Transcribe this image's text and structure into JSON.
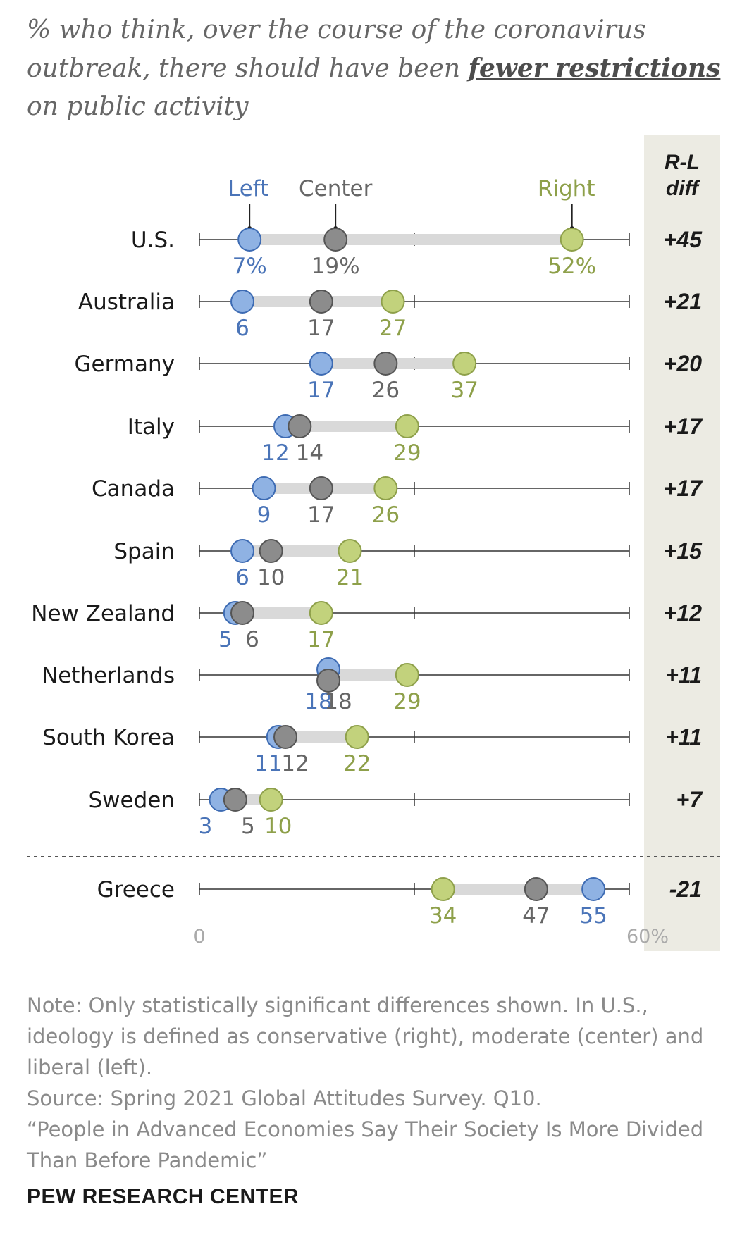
{
  "title": {
    "before": "% who think, over the course of the coronavirus outbreak, there should have been ",
    "emphasis": "fewer restrictions",
    "after": " on public activity"
  },
  "colors": {
    "left": "#8fb2e3",
    "left_stroke": "#3d6bb3",
    "left_text": "#4a74b8",
    "center": "#8c8c8c",
    "center_stroke": "#555555",
    "center_text": "#666666",
    "right": "#c2d27c",
    "right_stroke": "#8ea04a",
    "right_text": "#8ea04a",
    "range_bar": "#d9d9d9",
    "diff_panel": "#ecebe3"
  },
  "chart_data": {
    "type": "dot",
    "xlim": [
      0,
      60
    ],
    "x_tick_labels": [
      "0",
      "60%"
    ],
    "legend": [
      "Left",
      "Center",
      "Right"
    ],
    "diff_header": [
      "R-L",
      "diff"
    ],
    "rows": [
      {
        "country": "U.S.",
        "left": 7,
        "center": 19,
        "right": 52,
        "labels": [
          "7%",
          "19%",
          "52%"
        ],
        "diff": "+45"
      },
      {
        "country": "Australia",
        "left": 6,
        "center": 17,
        "right": 27,
        "labels": [
          "6",
          "17",
          "27"
        ],
        "diff": "+21"
      },
      {
        "country": "Germany",
        "left": 17,
        "center": 26,
        "right": 37,
        "labels": [
          "17",
          "26",
          "37"
        ],
        "diff": "+20"
      },
      {
        "country": "Italy",
        "left": 12,
        "center": 14,
        "right": 29,
        "labels": [
          "12",
          "14",
          "29"
        ],
        "diff": "+17"
      },
      {
        "country": "Canada",
        "left": 9,
        "center": 17,
        "right": 26,
        "labels": [
          "9",
          "17",
          "26"
        ],
        "diff": "+17"
      },
      {
        "country": "Spain",
        "left": 6,
        "center": 10,
        "right": 21,
        "labels": [
          "6",
          "10",
          "21"
        ],
        "diff": "+15"
      },
      {
        "country": "New Zealand",
        "left": 5,
        "center": 6,
        "right": 17,
        "labels": [
          "5",
          "6",
          "17"
        ],
        "diff": "+12"
      },
      {
        "country": "Netherlands",
        "left": 18,
        "center": 18,
        "right": 29,
        "labels": [
          "18",
          "18",
          "29"
        ],
        "diff": "+11"
      },
      {
        "country": "South Korea",
        "left": 11,
        "center": 12,
        "right": 22,
        "labels": [
          "11",
          "12",
          "22"
        ],
        "diff": "+11"
      },
      {
        "country": "Sweden",
        "left": 3,
        "center": 5,
        "right": 10,
        "labels": [
          "3",
          "5",
          "10"
        ],
        "diff": "+7"
      },
      {
        "country": "Greece",
        "left": 55,
        "center": 47,
        "right": 34,
        "labels": [
          "55",
          "47",
          "34"
        ],
        "diff": "-21"
      }
    ]
  },
  "notes": {
    "note": "Note: Only statistically significant differences shown. In U.S., ideology is defined as conservative (right), moderate (center) and liberal (left).",
    "source": "Source: Spring 2021 Global Attitudes Survey. Q10.",
    "report": "“People in Advanced Economies Say Their Society Is More Divided Than Before Pandemic”"
  },
  "brand": "PEW RESEARCH CENTER"
}
